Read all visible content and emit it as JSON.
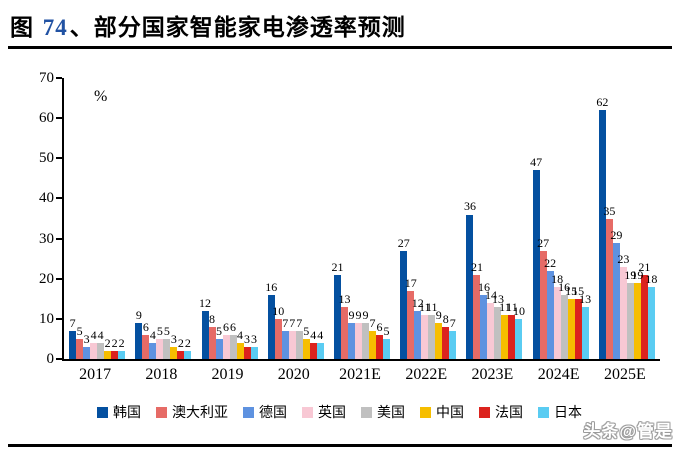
{
  "figure": {
    "title_prefix": "图 ",
    "title_number": "74",
    "title_suffix": "、部分国家智能家电渗透率预测",
    "title_number_color": "#2152A3",
    "unit_label": "%",
    "watermark": "头条@管是"
  },
  "chart_data": {
    "type": "bar",
    "title": "部分国家智能家电渗透率预测",
    "xlabel": "",
    "ylabel": "%",
    "ylim": [
      0,
      70
    ],
    "ytick_step": 10,
    "grid": false,
    "legend_position": "bottom",
    "categories": [
      "2017",
      "2018",
      "2019",
      "2020",
      "2021E",
      "2022E",
      "2023E",
      "2024E",
      "2025E"
    ],
    "series": [
      {
        "name": "韩国",
        "color": "#0450A0",
        "values": [
          7,
          9,
          12,
          16,
          21,
          27,
          36,
          47,
          62
        ]
      },
      {
        "name": "澳大利亚",
        "color": "#E66B66",
        "values": [
          5,
          6,
          8,
          10,
          13,
          17,
          21,
          27,
          35
        ]
      },
      {
        "name": "德国",
        "color": "#5E92E0",
        "values": [
          3,
          4,
          5,
          7,
          9,
          12,
          16,
          22,
          29
        ]
      },
      {
        "name": "英国",
        "color": "#F8C8D4",
        "values": [
          4,
          5,
          6,
          7,
          9,
          11,
          14,
          18,
          23
        ]
      },
      {
        "name": "美国",
        "color": "#C0C0C0",
        "values": [
          4,
          5,
          6,
          7,
          9,
          11,
          13,
          16,
          19
        ]
      },
      {
        "name": "中国",
        "color": "#F6BE00",
        "values": [
          2,
          3,
          4,
          5,
          7,
          9,
          11,
          15,
          19
        ]
      },
      {
        "name": "法国",
        "color": "#DC231E",
        "values": [
          2,
          2,
          3,
          4,
          6,
          8,
          11,
          15,
          21
        ]
      },
      {
        "name": "日本",
        "color": "#5ACCF2",
        "values": [
          2,
          2,
          3,
          4,
          5,
          7,
          10,
          13,
          18
        ]
      }
    ]
  }
}
